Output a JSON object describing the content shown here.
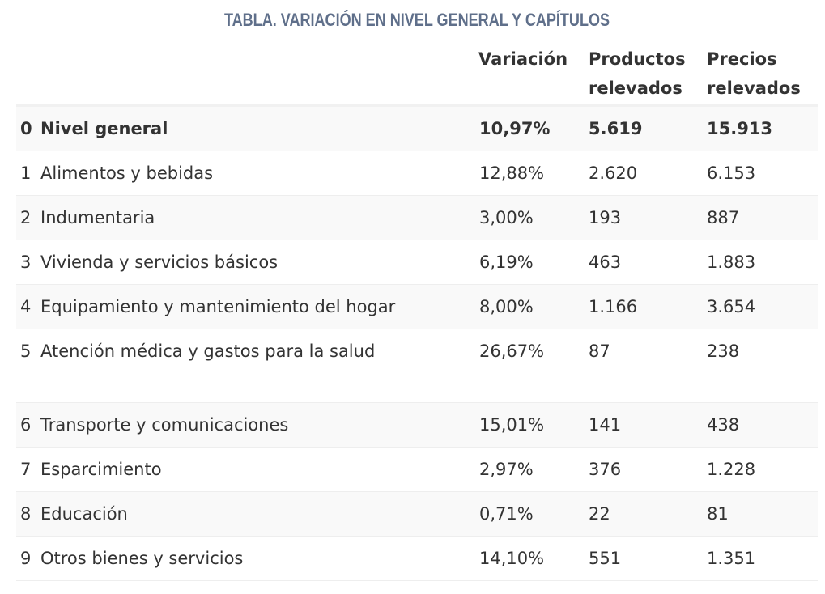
{
  "title": "TABLA. VARIACIÓN EN NIVEL GENERAL Y CAPÍTULOS",
  "table": {
    "headers": [
      "Variación",
      "Productos relevados",
      "Precios relevados"
    ],
    "rows": [
      {
        "num": "0",
        "name": "Nivel general",
        "variacion": "10,97%",
        "productos": "5.619",
        "precios": "15.913"
      },
      {
        "num": "1",
        "name": "Alimentos y bebidas",
        "variacion": "12,88%",
        "productos": "2.620",
        "precios": "6.153"
      },
      {
        "num": "2",
        "name": "Indumentaria",
        "variacion": "3,00%",
        "productos": "193",
        "precios": "887"
      },
      {
        "num": "3",
        "name": "Vivienda y servicios básicos",
        "variacion": "6,19%",
        "productos": "463",
        "precios": "1.883"
      },
      {
        "num": "4",
        "name": "Equipamiento y mantenimiento del hogar",
        "variacion": "8,00%",
        "productos": "1.166",
        "precios": "3.654"
      },
      {
        "num": "5",
        "name": "Atención médica y gastos para la salud",
        "variacion": "26,67%",
        "productos": "87",
        "precios": "238"
      },
      {
        "num": "6",
        "name": "Transporte y comunicaciones",
        "variacion": "15,01%",
        "productos": "141",
        "precios": "438"
      },
      {
        "num": "7",
        "name": "Esparcimiento",
        "variacion": "2,97%",
        "productos": "376",
        "precios": "1.228"
      },
      {
        "num": "8",
        "name": "Educación",
        "variacion": "0,71%",
        "productos": "22",
        "precios": "81"
      },
      {
        "num": "9",
        "name": "Otros bienes y servicios",
        "variacion": "14,10%",
        "productos": "551",
        "precios": "1.351"
      }
    ]
  }
}
